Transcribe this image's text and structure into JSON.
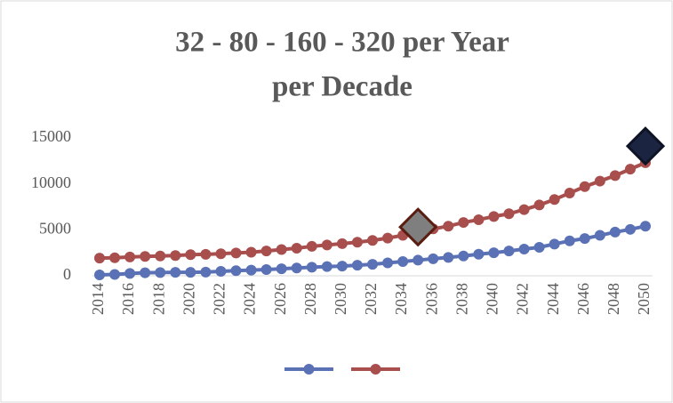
{
  "chart_data": {
    "type": "line",
    "title_lines": [
      "32  -  80  -  160  -  320  per Year",
      "per Decade"
    ],
    "x": [
      2014,
      2015,
      2016,
      2017,
      2018,
      2019,
      2020,
      2021,
      2022,
      2023,
      2024,
      2025,
      2026,
      2027,
      2028,
      2029,
      2030,
      2031,
      2032,
      2033,
      2034,
      2035,
      2036,
      2037,
      2038,
      2039,
      2040,
      2041,
      2042,
      2043,
      2044,
      2045,
      2046,
      2047,
      2048,
      2049,
      2050
    ],
    "series": [
      {
        "color": "#5a72b5",
        "values": [
          100,
          150,
          250,
          330,
          350,
          380,
          380,
          400,
          480,
          560,
          620,
          680,
          760,
          850,
          930,
          1000,
          1050,
          1150,
          1250,
          1400,
          1550,
          1700,
          1850,
          2000,
          2150,
          2350,
          2500,
          2700,
          2900,
          3100,
          3450,
          3800,
          4050,
          4400,
          4750,
          5050,
          5400
        ]
      },
      {
        "color": "#a84f4e",
        "values": [
          1920,
          1960,
          2040,
          2100,
          2150,
          2200,
          2300,
          2330,
          2400,
          2480,
          2560,
          2700,
          2850,
          3000,
          3200,
          3350,
          3500,
          3650,
          3850,
          4100,
          4400,
          4800,
          5100,
          5400,
          5800,
          6100,
          6450,
          6750,
          7200,
          7700,
          8300,
          9000,
          9700,
          10300,
          10900,
          11600,
          12300
        ]
      }
    ],
    "highlights": [
      {
        "x": 2035,
        "value": 5300,
        "color": "#7f7f7f",
        "stroke": "#5a1e10"
      },
      {
        "x": 2050,
        "value": 14100,
        "color": "#1b2440",
        "stroke": "#0e1426"
      }
    ],
    "xlim": [
      2014,
      2050
    ],
    "xticks": [
      2014,
      2016,
      2018,
      2020,
      2022,
      2024,
      2026,
      2028,
      2030,
      2032,
      2034,
      2036,
      2038,
      2040,
      2042,
      2044,
      2046,
      2048,
      2050
    ],
    "ylim": [
      0,
      15000
    ],
    "yticks": [
      0,
      5000,
      10000,
      15000
    ],
    "grid": false,
    "legend": "bottom"
  }
}
